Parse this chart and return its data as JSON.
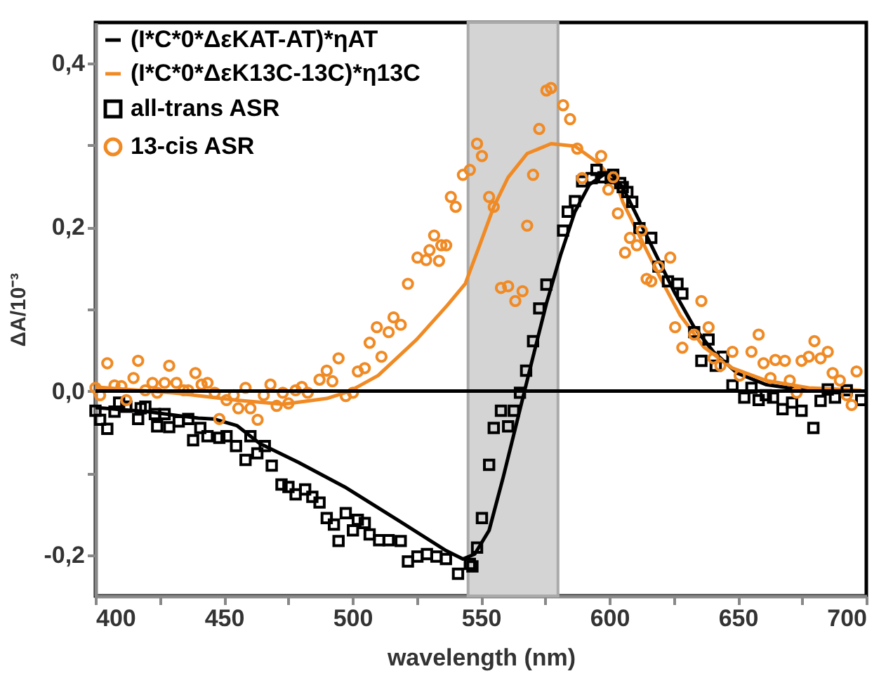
{
  "chart_data": {
    "type": "scatter",
    "xlabel": "wavelength (nm)",
    "ylabel": "ΔA/10⁻³",
    "xlim": [
      400,
      700
    ],
    "ylim": [
      -0.25,
      0.45
    ],
    "xticks": [
      400,
      {
        "value": 425,
        "label": null
      },
      450,
      {
        "value": 475,
        "label": null
      },
      500,
      {
        "value": 525,
        "label": null
      },
      550,
      {
        "value": 575,
        "label": null
      },
      600,
      {
        "value": 625,
        "label": null
      },
      650,
      {
        "value": 675,
        "label": null
      },
      700
    ],
    "yticks": [
      {
        "value": -0.2,
        "label": "-0,2"
      },
      {
        "value": -0.1,
        "label": null
      },
      {
        "value": 0.0,
        "label": "0,0"
      },
      {
        "value": 0.1,
        "label": null
      },
      {
        "value": 0.2,
        "label": "0,2"
      },
      {
        "value": 0.3,
        "label": null
      },
      {
        "value": 0.4,
        "label": "0,4"
      }
    ],
    "grid": false,
    "legend": "top left",
    "ref_lines": [
      {
        "axis": "y",
        "value": 0.0,
        "color": "#000000",
        "line_style": "solid"
      }
    ],
    "bands": [
      {
        "axis": "x",
        "from": 545,
        "to": 580,
        "color": "#d4d4d4"
      }
    ],
    "series": [
      {
        "name": "(I*C*0*ΔεKAT-AT)*ηAT",
        "type": "line",
        "marker": "none",
        "line_style": "solid",
        "color": "#000000",
        "x": [
          400,
          420,
          440,
          446,
          455,
          464,
          479,
          497,
          518,
          536,
          543,
          547.6,
          553.2,
          558.7,
          564.3,
          569.9,
          575.5,
          581,
          586.6,
          592.2,
          597.7,
          600,
          605.2,
          610.7,
          618.2,
          625.6,
          633,
          640.5,
          649.7,
          660.9,
          673.9,
          698
        ],
        "values": [
          -0.02,
          -0.025,
          -0.033,
          -0.034,
          -0.042,
          -0.064,
          -0.087,
          -0.117,
          -0.158,
          -0.194,
          -0.205,
          -0.199,
          -0.17,
          -0.105,
          -0.034,
          0.037,
          0.107,
          0.166,
          0.219,
          0.252,
          0.264,
          0.266,
          0.249,
          0.214,
          0.166,
          0.119,
          0.078,
          0.048,
          0.022,
          0.008,
          0.002,
          0.0
        ]
      },
      {
        "name": "(I*C*0*ΔεK13C-13C)*η13C",
        "type": "line",
        "marker": "none",
        "line_style": "solid",
        "color": "#f08a24",
        "x": [
          400,
          430,
          455,
          473,
          490,
          499,
          510,
          525,
          537,
          543.9,
          549.5,
          555,
          560.6,
          568,
          577.3,
          586.6,
          595.9,
          603.3,
          605.2,
          612.6,
          620,
          627.5,
          636.7,
          647.9,
          660.9,
          677.6,
          698
        ],
        "values": [
          0.005,
          -0.002,
          -0.011,
          -0.016,
          -0.009,
          0.0,
          0.019,
          0.063,
          0.105,
          0.131,
          0.178,
          0.225,
          0.261,
          0.29,
          0.302,
          0.299,
          0.278,
          0.249,
          0.231,
          0.184,
          0.137,
          0.093,
          0.054,
          0.028,
          0.013,
          0.004,
          0.001
        ]
      },
      {
        "name": "all-trans ASR",
        "marker": "square",
        "color": "#000000",
        "x": [
          400,
          401.8,
          404.6,
          407.4,
          409.2,
          412,
          416.6,
          417.6,
          419.4,
          423.1,
          424,
          426.9,
          428.7,
          432.4,
          436.1,
          438,
          440.8,
          443.6,
          448.2,
          451,
          454.7,
          458.4,
          460.3,
          463,
          465.9,
          468.6,
          472.4,
          475.1,
          477.9,
          481.6,
          484.4,
          487.2,
          490,
          492.8,
          494.6,
          497.4,
          500.2,
          502.1,
          504.8,
          506.7,
          510.4,
          514.1,
          518.8,
          521.6,
          525.3,
          529,
          532.7,
          536.4,
          541.1,
          545.7,
          546.7,
          548.5,
          550.4,
          553.2,
          555,
          557.8,
          560.6,
          562.8,
          565.2,
          567.6,
          570.3,
          572.7,
          575.5,
          582,
          583.8,
          586.6,
          589.4,
          593.1,
          595,
          597.7,
          600.5,
          601.5,
          604.2,
          605.2,
          607,
          608.9,
          611.7,
          616.3,
          619.1,
          622.8,
          626.5,
          628.4,
          633,
          635.8,
          638.6,
          641.4,
          644.2,
          647.9,
          652.5,
          655.3,
          658.1,
          660.9,
          663.7,
          667.4,
          671.1,
          674.8,
          679.4,
          682.2,
          685,
          687.8,
          692.4,
          698
        ],
        "values": [
          -0.024,
          -0.035,
          -0.046,
          -0.025,
          -0.014,
          -0.019,
          -0.034,
          -0.021,
          -0.019,
          -0.028,
          -0.043,
          -0.028,
          -0.044,
          -0.037,
          -0.034,
          -0.06,
          -0.045,
          -0.055,
          -0.057,
          -0.055,
          -0.067,
          -0.084,
          -0.055,
          -0.076,
          -0.067,
          -0.091,
          -0.114,
          -0.117,
          -0.126,
          -0.12,
          -0.129,
          -0.136,
          -0.155,
          -0.163,
          -0.183,
          -0.149,
          -0.17,
          -0.157,
          -0.161,
          -0.175,
          -0.182,
          -0.182,
          -0.183,
          -0.208,
          -0.202,
          -0.199,
          -0.202,
          -0.205,
          -0.223,
          -0.211,
          -0.214,
          -0.191,
          -0.155,
          -0.09,
          -0.045,
          -0.024,
          -0.043,
          -0.024,
          -0.002,
          0.025,
          0.061,
          0.101,
          0.13,
          0.196,
          0.219,
          0.232,
          0.256,
          0.26,
          0.27,
          0.261,
          0.26,
          0.264,
          0.254,
          0.249,
          0.243,
          0.231,
          0.199,
          0.187,
          0.152,
          0.134,
          0.131,
          0.119,
          0.072,
          0.037,
          0.063,
          0.031,
          0.042,
          0.007,
          -0.008,
          0.004,
          -0.011,
          -0.005,
          -0.008,
          -0.022,
          -0.014,
          -0.024,
          -0.045,
          -0.012,
          0.002,
          -0.008,
          0.001,
          -0.011
        ]
      },
      {
        "name": "13-cis ASR",
        "marker": "circle",
        "color": "#f08a24",
        "x": [
          400,
          401.8,
          404.6,
          407.4,
          410.1,
          412,
          414.8,
          416.6,
          419.4,
          422.2,
          424,
          426.9,
          428.7,
          431.5,
          434.3,
          436.1,
          438.9,
          441.3,
          443.6,
          446.4,
          448.2,
          451,
          453.8,
          455.6,
          458.4,
          460.3,
          463.1,
          465.5,
          468.1,
          470.5,
          472.9,
          475.1,
          477.9,
          480.3,
          482.6,
          487.2,
          490,
          492.2,
          494.6,
          497.4,
          500.2,
          502.1,
          504.8,
          506.7,
          509.5,
          511.3,
          514.1,
          516,
          518.8,
          521.6,
          525.3,
          528.7,
          530,
          531.8,
          533.7,
          534.6,
          536.5,
          538.3,
          540.2,
          543,
          545.7,
          548.5,
          550.4,
          553.2,
          555,
          557.8,
          560.6,
          563.4,
          566.2,
          568,
          570.3,
          572.7,
          575.5,
          577.3,
          582,
          584.7,
          587.5,
          589.4,
          596.8,
          599.6,
          601.5,
          603.3,
          606.1,
          608,
          610.7,
          612.6,
          614.5,
          616.3,
          619.1,
          623.7,
          625.6,
          628.4,
          633,
          635.8,
          638.6,
          640.5,
          643.2,
          647.9,
          650.7,
          655.3,
          658.1,
          660,
          662.7,
          664.6,
          668.3,
          670.2,
          672.9,
          674.8,
          677.6,
          679.8,
          682.2,
          685,
          686.9,
          689.7,
          692.4,
          694.3,
          696.2
        ],
        "values": [
          0.004,
          -0.005,
          0.034,
          0.007,
          0.006,
          -0.011,
          0.016,
          0.037,
          0.001,
          0.01,
          -0.002,
          0.01,
          0.031,
          0.01,
          0.001,
          0.001,
          0.022,
          0.008,
          0.01,
          -0.002,
          -0.034,
          -0.011,
          -0.005,
          -0.021,
          0.004,
          -0.021,
          -0.035,
          -0.005,
          0.008,
          -0.018,
          -0.002,
          -0.015,
          0.001,
          0.005,
          -0.002,
          0.014,
          0.025,
          0.012,
          0.04,
          -0.006,
          -0.002,
          0.024,
          0.028,
          0.059,
          0.078,
          0.042,
          0.072,
          0.09,
          0.081,
          0.131,
          0.163,
          0.16,
          0.172,
          0.19,
          0.159,
          0.178,
          0.178,
          0.237,
          0.225,
          0.264,
          0.27,
          0.302,
          0.287,
          0.237,
          0.225,
          0.126,
          0.128,
          0.11,
          0.122,
          0.202,
          0.264,
          0.32,
          0.367,
          0.37,
          0.349,
          0.332,
          0.296,
          0.26,
          0.287,
          0.246,
          0.261,
          0.217,
          0.169,
          0.187,
          0.178,
          0.196,
          0.137,
          0.134,
          0.152,
          0.163,
          0.078,
          0.053,
          0.069,
          0.11,
          0.078,
          0.04,
          0.031,
          0.048,
          0.019,
          0.048,
          0.069,
          0.034,
          0.016,
          0.038,
          0.037,
          0.013,
          -0.002,
          0.037,
          0.042,
          0.061,
          0.04,
          0.048,
          0.022,
          0.013,
          -0.005,
          -0.017,
          0.024
        ]
      }
    ]
  }
}
